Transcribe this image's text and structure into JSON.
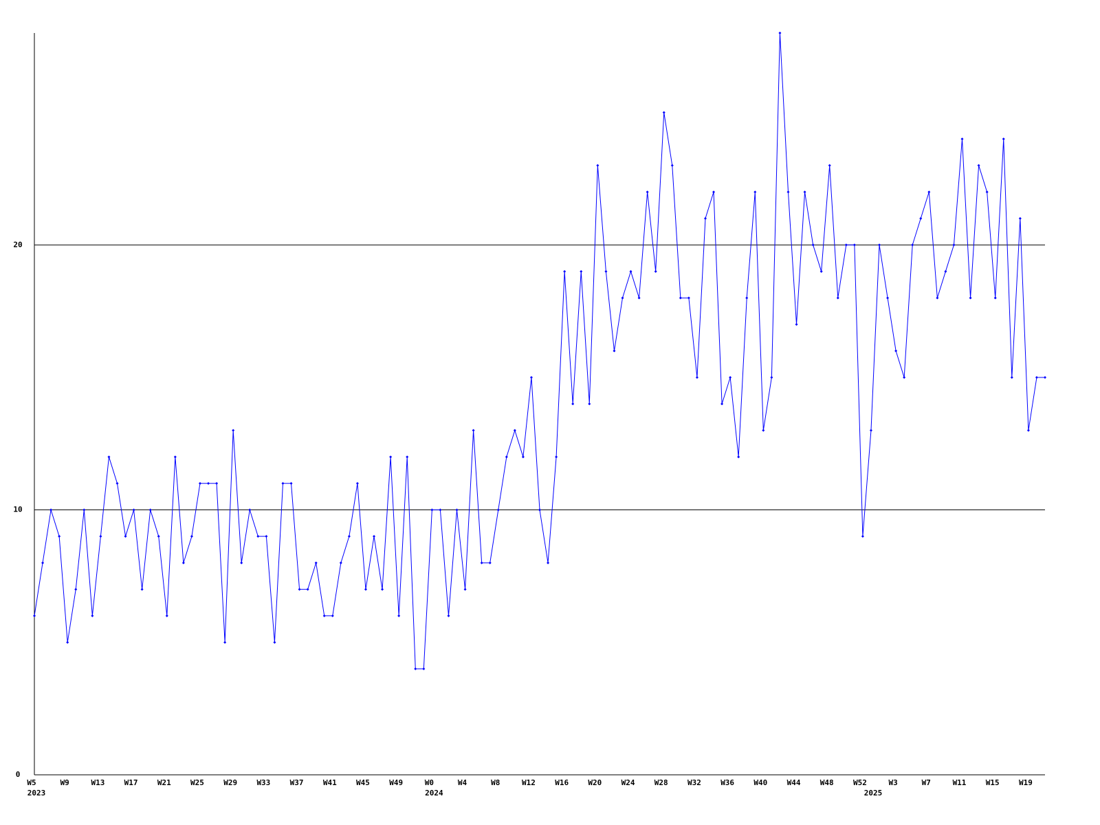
{
  "chart_data": {
    "type": "line",
    "color": "#0000ff",
    "ylim": [
      0,
      28
    ],
    "yticks": [
      0,
      10,
      20
    ],
    "grid": true,
    "categories": [
      "W5",
      null,
      null,
      null,
      "W9",
      null,
      null,
      null,
      "W13",
      null,
      null,
      null,
      "W17",
      null,
      null,
      null,
      "W21",
      null,
      null,
      null,
      "W25",
      null,
      null,
      null,
      "W29",
      null,
      null,
      null,
      "W33",
      null,
      null,
      null,
      "W37",
      null,
      null,
      null,
      "W41",
      null,
      null,
      null,
      "W45",
      null,
      null,
      null,
      "W49",
      null,
      null,
      null,
      "W0",
      null,
      null,
      null,
      "W4",
      null,
      null,
      null,
      "W8",
      null,
      null,
      null,
      "W12",
      null,
      null,
      null,
      "W16",
      null,
      null,
      null,
      "W20",
      null,
      null,
      null,
      "W24",
      null,
      null,
      null,
      "W28",
      null,
      null,
      null,
      "W32",
      null,
      null,
      null,
      "W36",
      null,
      null,
      null,
      "W40",
      null,
      null,
      null,
      "W44",
      null,
      null,
      null,
      "W48",
      null,
      null,
      null,
      "W52",
      null,
      null,
      null,
      "W3",
      null,
      null,
      null,
      "W7",
      null,
      null,
      null,
      "W11",
      null,
      null,
      null,
      "W15",
      null,
      null,
      null,
      "W19",
      null,
      null
    ],
    "years": [
      "2023",
      null,
      null,
      null,
      null,
      null,
      null,
      null,
      null,
      null,
      null,
      null,
      null,
      null,
      null,
      null,
      null,
      null,
      null,
      null,
      null,
      null,
      null,
      null,
      null,
      null,
      null,
      null,
      null,
      null,
      null,
      null,
      null,
      null,
      null,
      null,
      null,
      null,
      null,
      null,
      null,
      null,
      null,
      null,
      null,
      null,
      null,
      null,
      "2024",
      null,
      null,
      null,
      null,
      null,
      null,
      null,
      null,
      null,
      null,
      null,
      null,
      null,
      null,
      null,
      null,
      null,
      null,
      null,
      null,
      null,
      null,
      null,
      null,
      null,
      null,
      null,
      null,
      null,
      null,
      null,
      null,
      null,
      null,
      null,
      null,
      null,
      null,
      null,
      null,
      null,
      null,
      null,
      null,
      null,
      null,
      null,
      null,
      null,
      null,
      null,
      null,
      "2025",
      null,
      null,
      null,
      null,
      null,
      null,
      null,
      null,
      null,
      null,
      null,
      null,
      null,
      null,
      null,
      null,
      null,
      null,
      null,
      null,
      null
    ],
    "values": [
      6,
      8,
      10,
      9,
      5,
      7,
      10,
      6,
      9,
      12,
      11,
      9,
      10,
      7,
      10,
      9,
      6,
      12,
      8,
      9,
      11,
      11,
      11,
      5,
      13,
      8,
      10,
      9,
      9,
      5,
      11,
      11,
      7,
      7,
      8,
      6,
      6,
      8,
      9,
      11,
      7,
      9,
      7,
      12,
      6,
      12,
      4,
      4,
      10,
      10,
      6,
      10,
      7,
      13,
      8,
      8,
      10,
      12,
      13,
      12,
      15,
      10,
      8,
      12,
      19,
      14,
      19,
      14,
      23,
      19,
      16,
      18,
      19,
      18,
      22,
      19,
      25,
      23,
      18,
      18,
      15,
      21,
      22,
      14,
      15,
      12,
      18,
      22,
      13,
      15,
      28,
      22,
      17,
      22,
      20,
      19,
      23,
      18,
      20,
      20,
      9,
      13,
      20,
      18,
      16,
      15,
      20,
      21,
      22,
      18,
      19,
      20,
      24,
      18,
      23,
      22,
      18,
      24,
      15,
      21,
      13,
      15,
      15
    ]
  }
}
